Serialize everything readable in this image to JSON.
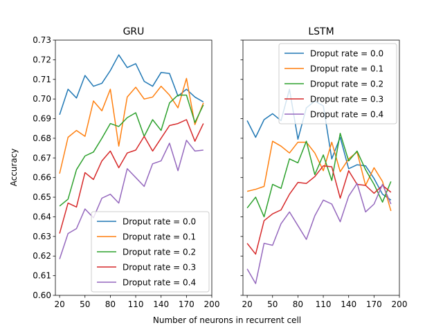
{
  "chart_data": {
    "type": "line",
    "shared_ylabel": "Accuracy",
    "shared_xlabel": "Number of neurons in recurrent cell",
    "ylim": [
      0.6,
      0.73
    ],
    "yticks": [
      "0.60",
      "0.61",
      "0.62",
      "0.63",
      "0.64",
      "0.65",
      "0.66",
      "0.67",
      "0.68",
      "0.69",
      "0.70",
      "0.71",
      "0.72",
      "0.73"
    ],
    "xlim": [
      15,
      200
    ],
    "xticks": [
      "20",
      "50",
      "80",
      "110",
      "140",
      "170",
      "200"
    ],
    "x": [
      20,
      30,
      40,
      50,
      60,
      70,
      80,
      90,
      100,
      110,
      120,
      130,
      140,
      150,
      160,
      170,
      180,
      190
    ],
    "colors": [
      "#1f77b4",
      "#ff7f0e",
      "#2ca02c",
      "#d62728",
      "#9467bd"
    ],
    "panels": [
      {
        "title": "GRU",
        "legend_position": "lower-right",
        "series": [
          {
            "name": "Droput rate = 0.0",
            "values": [
              0.692,
              0.705,
              0.7005,
              0.712,
              0.7065,
              0.708,
              0.7145,
              0.7225,
              0.716,
              0.718,
              0.709,
              0.7065,
              0.7135,
              0.713,
              0.7015,
              0.705,
              0.701,
              0.6985
            ]
          },
          {
            "name": "Droput rate = 0.1",
            "values": [
              0.662,
              0.6805,
              0.684,
              0.681,
              0.699,
              0.694,
              0.705,
              0.676,
              0.701,
              0.706,
              0.7,
              0.701,
              0.7065,
              0.702,
              0.6955,
              0.7105,
              0.687,
              0.698
            ]
          },
          {
            "name": "Droput rate = 0.2",
            "values": [
              0.6455,
              0.649,
              0.664,
              0.671,
              0.673,
              0.68,
              0.6875,
              0.686,
              0.6905,
              0.693,
              0.681,
              0.6895,
              0.684,
              0.698,
              0.702,
              0.702,
              0.688,
              0.697
            ]
          },
          {
            "name": "Droput rate = 0.3",
            "values": [
              0.6315,
              0.647,
              0.645,
              0.6625,
              0.659,
              0.6685,
              0.6735,
              0.665,
              0.6725,
              0.674,
              0.681,
              0.6735,
              0.68,
              0.6865,
              0.6875,
              0.6895,
              0.6785,
              0.6875
            ]
          },
          {
            "name": "Droput rate = 0.4",
            "values": [
              0.6185,
              0.6315,
              0.634,
              0.644,
              0.6395,
              0.6495,
              0.6515,
              0.647,
              0.6645,
              0.66,
              0.6555,
              0.667,
              0.6685,
              0.6775,
              0.6635,
              0.679,
              0.6735,
              0.674
            ]
          }
        ]
      },
      {
        "title": "LSTM",
        "legend_position": "upper-right",
        "series": [
          {
            "name": "Droput rate = 0.0",
            "values": [
              0.689,
              0.6805,
              0.6895,
              0.6925,
              0.689,
              0.705,
              0.6795,
              0.6955,
              0.699,
              0.6965,
              0.6695,
              0.6805,
              0.6645,
              0.6665,
              0.666,
              0.6595,
              0.6515,
              0.6485
            ]
          },
          {
            "name": "Droput rate = 0.1",
            "values": [
              0.653,
              0.654,
              0.6555,
              0.6785,
              0.676,
              0.6725,
              0.678,
              0.678,
              0.6725,
              0.6635,
              0.678,
              0.663,
              0.6695,
              0.673,
              0.656,
              0.665,
              0.658,
              0.643
            ]
          },
          {
            "name": "Droput rate = 0.2",
            "values": [
              0.6445,
              0.65,
              0.64,
              0.6565,
              0.6545,
              0.6695,
              0.6675,
              0.6785,
              0.6615,
              0.6715,
              0.6585,
              0.6825,
              0.6685,
              0.6735,
              0.664,
              0.6565,
              0.6475,
              0.658
            ]
          },
          {
            "name": "Droput rate = 0.3",
            "values": [
              0.6265,
              0.621,
              0.638,
              0.6415,
              0.6435,
              0.6515,
              0.6575,
              0.657,
              0.6605,
              0.666,
              0.6655,
              0.6495,
              0.6635,
              0.6565,
              0.656,
              0.652,
              0.656,
              0.6525
            ]
          },
          {
            "name": "Droput rate = 0.4",
            "values": [
              0.6135,
              0.606,
              0.6265,
              0.6255,
              0.6365,
              0.6425,
              0.6355,
              0.6285,
              0.6405,
              0.6485,
              0.6465,
              0.6375,
              0.6505,
              0.657,
              0.6425,
              0.6465,
              0.6565,
              0.6465
            ]
          }
        ]
      }
    ]
  }
}
